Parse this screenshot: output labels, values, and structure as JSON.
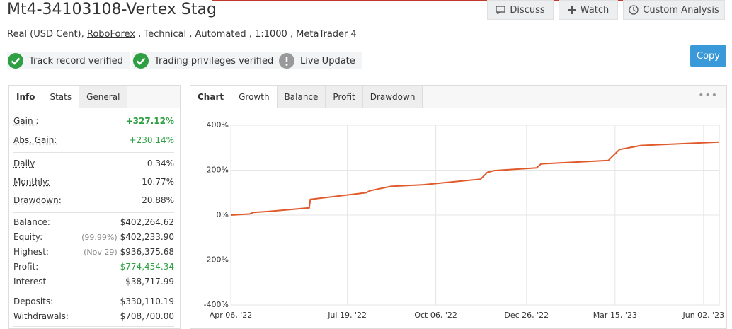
{
  "header": {
    "title": "Mt4-34103108-Vertex Stag",
    "buttons": [
      "Discuss",
      "Watch",
      "Custom Analysis"
    ],
    "account": {
      "prefix": "Real (USD Cent), ",
      "broker": "RoboForex",
      "suffix": " , Technical , Automated , 1:1000 , MetaTrader 4"
    },
    "badges": [
      "Track record verified",
      "Trading privileges verified",
      "Live Update"
    ],
    "copy": "Copy"
  },
  "stats": {
    "tabs": [
      "Info",
      "Stats",
      "General"
    ],
    "groups": [
      [
        {
          "label": "Gain :",
          "value": "+327.12%",
          "color": "#2ea043"
        },
        {
          "label": "Abs. Gain:",
          "value": "+230.14%",
          "color": "#2ea043"
        }
      ],
      [
        {
          "label": "Daily",
          "value": "0.34%"
        },
        {
          "label": "Monthly:",
          "value": "10.77%"
        },
        {
          "label": "Drawdown:",
          "value": "20.88%"
        }
      ],
      [
        {
          "label": "Balance:",
          "value": "$402,264.62"
        },
        {
          "label": "Equity:",
          "note": "(99.99%)",
          "value": "$402,233.90"
        },
        {
          "label": "Highest:",
          "note": "(Nov 29)",
          "value": "$936,375.68"
        },
        {
          "label": "Profit:",
          "value": "$774,454.34",
          "color": "#2ea043"
        },
        {
          "label": "Interest",
          "value": "-$38,717.99"
        }
      ],
      [
        {
          "label": "Deposits:",
          "value": "$330,110.19"
        },
        {
          "label": "Withdrawals:",
          "value": "$708,700.00"
        }
      ]
    ]
  },
  "chart_panel": {
    "tabs": [
      "Chart",
      "Growth",
      "Balance",
      "Profit",
      "Drawdown"
    ]
  },
  "chart_data": {
    "type": "line",
    "x": [
      "2022-04-06",
      "2022-04-23",
      "2022-04-26",
      "2022-05-14",
      "2022-06-15",
      "2022-06-16",
      "2022-08-05",
      "2022-08-08",
      "2022-08-27",
      "2022-09-25",
      "2022-11-15",
      "2022-11-21",
      "2022-11-27",
      "2023-01-04",
      "2023-01-08",
      "2023-03-09",
      "2023-03-19",
      "2023-04-07",
      "2023-06-16"
    ],
    "series": [
      {
        "color": "#e05a2b",
        "values": [
          0,
          5,
          12,
          18,
          32,
          70,
          100,
          108,
          128,
          135,
          160,
          190,
          198,
          210,
          228,
          243,
          292,
          310,
          325
        ]
      }
    ],
    "xlim": [
      "2022-04-06",
      "2023-06-16"
    ],
    "xticks": [
      {
        "value": "2022-04-06",
        "label": "Apr 06, '22"
      },
      {
        "value": "2022-07-19",
        "label": "Jul 19, '22"
      },
      {
        "value": "2022-10-06",
        "label": "Oct 06, '22"
      },
      {
        "value": "2022-12-26",
        "label": "Dec 26, '22"
      },
      {
        "value": "2023-03-15",
        "label": "Mar 15, '23"
      },
      {
        "value": "2023-06-02",
        "label": "Jun 02, '23"
      }
    ],
    "ylim": [
      -400,
      400
    ],
    "yticks": [
      {
        "value": -400,
        "label": "-400%"
      },
      {
        "value": -200,
        "label": "-200%"
      },
      {
        "value": 0,
        "label": "0%"
      },
      {
        "value": 200,
        "label": "200%"
      },
      {
        "value": 400,
        "label": "400%"
      }
    ],
    "grid": true
  }
}
